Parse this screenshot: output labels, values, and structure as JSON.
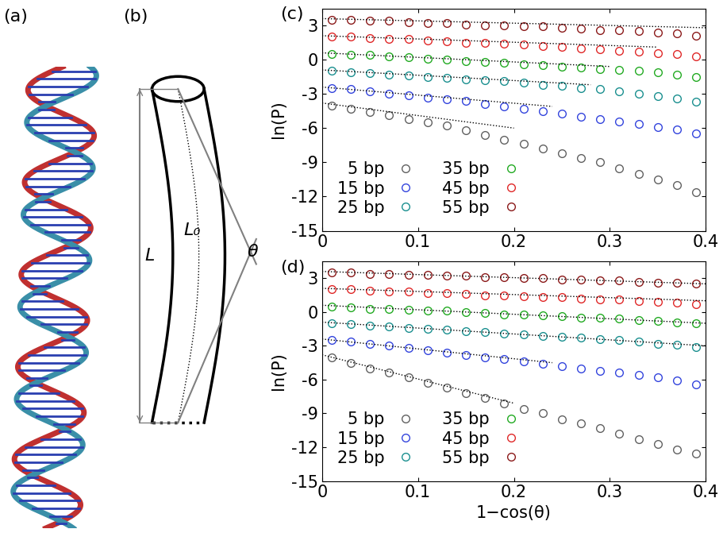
{
  "panels": {
    "a": {
      "label": "(a)"
    },
    "b": {
      "label": "(b)",
      "texts": {
        "length": "L",
        "contour": "L₀",
        "angle": "θ"
      }
    }
  },
  "chart_data": [
    {
      "type": "scatter",
      "panel_label": "(c)",
      "ylabel": "ln(P)",
      "xlim": [
        0,
        0.4
      ],
      "xticks": [
        0,
        0.1,
        0.2,
        0.3,
        0.4
      ],
      "ylim": [
        -15,
        4.5
      ],
      "yticks": [
        -15,
        -12,
        -9,
        -6,
        -3,
        0,
        3
      ],
      "legend": "lower left",
      "marker": "o",
      "line_style": "dotted",
      "x": [
        0.01,
        0.03,
        0.05,
        0.07,
        0.09,
        0.11,
        0.13,
        0.15,
        0.17,
        0.19,
        0.21,
        0.23,
        0.25,
        0.27,
        0.29,
        0.31,
        0.33,
        0.35,
        0.37,
        0.39
      ],
      "series": [
        {
          "name": "5 bp",
          "color": "#606060",
          "values": [
            -4.0,
            -4.3,
            -4.6,
            -4.9,
            -5.2,
            -5.5,
            -5.8,
            -6.2,
            -6.6,
            -7.0,
            -7.4,
            -7.8,
            -8.2,
            -8.6,
            -9.0,
            -9.5,
            -10.0,
            -10.5,
            -11.0,
            -11.6
          ],
          "fit_x": [
            0,
            0.2
          ],
          "fit_values": [
            -3.8,
            -6.0
          ]
        },
        {
          "name": "15 bp",
          "color": "#3344dd",
          "values": [
            -2.5,
            -2.6,
            -2.8,
            -3.0,
            -3.1,
            -3.3,
            -3.5,
            -3.6,
            -3.9,
            -4.1,
            -4.3,
            -4.5,
            -4.7,
            -5.0,
            -5.2,
            -5.4,
            -5.6,
            -5.9,
            -6.1,
            -6.5
          ],
          "fit_x": [
            0,
            0.24
          ],
          "fit_values": [
            -2.4,
            -4.1
          ]
        },
        {
          "name": "25 bp",
          "color": "#1a8f8f",
          "values": [
            -1.0,
            -1.1,
            -1.2,
            -1.3,
            -1.4,
            -1.5,
            -1.6,
            -1.7,
            -1.8,
            -1.9,
            -2.0,
            -2.2,
            -2.3,
            -2.5,
            -2.6,
            -2.8,
            -3.0,
            -3.2,
            -3.4,
            -3.7
          ],
          "fit_x": [
            0,
            0.28
          ],
          "fit_values": [
            -0.9,
            -2.2
          ]
        },
        {
          "name": "35 bp",
          "color": "#22aa22",
          "values": [
            0.5,
            0.4,
            0.4,
            0.3,
            0.2,
            0.1,
            0.0,
            -0.1,
            -0.2,
            -0.3,
            -0.4,
            -0.5,
            -0.6,
            -0.7,
            -0.8,
            -0.9,
            -1.0,
            -1.1,
            -1.3,
            -1.5
          ],
          "fit_x": [
            0,
            0.3
          ],
          "fit_values": [
            0.6,
            -0.6
          ]
        },
        {
          "name": "45 bp",
          "color": "#e02828",
          "values": [
            2.0,
            2.0,
            1.9,
            1.8,
            1.8,
            1.7,
            1.6,
            1.5,
            1.5,
            1.4,
            1.3,
            1.2,
            1.1,
            1.0,
            0.9,
            0.8,
            0.7,
            0.6,
            0.5,
            0.3
          ],
          "fit_x": [
            0,
            0.35
          ],
          "fit_values": [
            2.1,
            1.1
          ]
        },
        {
          "name": "55 bp",
          "color": "#8b1a1a",
          "values": [
            3.5,
            3.5,
            3.4,
            3.4,
            3.3,
            3.2,
            3.2,
            3.1,
            3.0,
            3.0,
            2.9,
            2.9,
            2.8,
            2.7,
            2.6,
            2.6,
            2.5,
            2.4,
            2.3,
            2.1
          ],
          "fit_x": [
            0,
            0.4
          ],
          "fit_values": [
            3.6,
            2.8
          ]
        }
      ]
    },
    {
      "type": "scatter",
      "panel_label": "(d)",
      "ylabel": "ln(P)",
      "xlabel": "1−cos(θ)",
      "xlim": [
        0,
        0.4
      ],
      "xticks": [
        0,
        0.1,
        0.2,
        0.3,
        0.4
      ],
      "ylim": [
        -15,
        4.5
      ],
      "yticks": [
        -15,
        -12,
        -9,
        -6,
        -3,
        0,
        3
      ],
      "legend": "lower left",
      "marker": "o",
      "line_style": "dotted",
      "x": [
        0.01,
        0.03,
        0.05,
        0.07,
        0.09,
        0.11,
        0.13,
        0.15,
        0.17,
        0.19,
        0.21,
        0.23,
        0.25,
        0.27,
        0.29,
        0.31,
        0.33,
        0.35,
        0.37,
        0.39
      ],
      "series": [
        {
          "name": "5 bp",
          "color": "#606060",
          "values": [
            -4.0,
            -4.5,
            -5.0,
            -5.4,
            -5.8,
            -6.3,
            -6.7,
            -7.2,
            -7.6,
            -8.1,
            -8.6,
            -9.0,
            -9.5,
            -9.9,
            -10.3,
            -10.8,
            -11.3,
            -11.7,
            -12.2,
            -12.6
          ],
          "fit_x": [
            0,
            0.2
          ],
          "fit_values": [
            -3.8,
            -8.1
          ]
        },
        {
          "name": "15 bp",
          "color": "#3344dd",
          "values": [
            -2.5,
            -2.6,
            -2.8,
            -3.0,
            -3.2,
            -3.4,
            -3.6,
            -3.8,
            -4.0,
            -4.2,
            -4.4,
            -4.6,
            -4.8,
            -5.0,
            -5.2,
            -5.4,
            -5.6,
            -5.8,
            -6.1,
            -6.4
          ],
          "fit_x": [
            0,
            0.24
          ],
          "fit_values": [
            -2.4,
            -4.5
          ]
        },
        {
          "name": "25 bp",
          "color": "#1a8f8f",
          "values": [
            -1.0,
            -1.1,
            -1.2,
            -1.3,
            -1.4,
            -1.5,
            -1.6,
            -1.7,
            -1.8,
            -1.9,
            -2.0,
            -2.1,
            -2.2,
            -2.3,
            -2.4,
            -2.5,
            -2.6,
            -2.8,
            -2.9,
            -3.1
          ],
          "fit_x": [
            0,
            0.4
          ],
          "fit_values": [
            -0.9,
            -3.0
          ]
        },
        {
          "name": "35 bp",
          "color": "#22aa22",
          "values": [
            0.5,
            0.4,
            0.3,
            0.3,
            0.2,
            0.1,
            0.1,
            0.0,
            -0.1,
            -0.2,
            -0.2,
            -0.3,
            -0.4,
            -0.5,
            -0.5,
            -0.6,
            -0.7,
            -0.8,
            -0.9,
            -1.0
          ],
          "fit_x": [
            0,
            0.4
          ],
          "fit_values": [
            0.6,
            -1.0
          ]
        },
        {
          "name": "45 bp",
          "color": "#e02828",
          "values": [
            2.0,
            2.0,
            1.9,
            1.8,
            1.8,
            1.7,
            1.7,
            1.6,
            1.5,
            1.5,
            1.4,
            1.3,
            1.3,
            1.2,
            1.1,
            1.1,
            1.0,
            0.9,
            0.8,
            0.7
          ],
          "fit_x": [
            0,
            0.4
          ],
          "fit_values": [
            2.1,
            1.0
          ]
        },
        {
          "name": "55 bp",
          "color": "#8b1a1a",
          "values": [
            3.5,
            3.5,
            3.4,
            3.4,
            3.3,
            3.3,
            3.2,
            3.2,
            3.1,
            3.1,
            3.0,
            3.0,
            2.9,
            2.9,
            2.8,
            2.8,
            2.7,
            2.6,
            2.6,
            2.5
          ],
          "fit_x": [
            0,
            0.4
          ],
          "fit_values": [
            3.6,
            2.5
          ]
        }
      ]
    }
  ]
}
